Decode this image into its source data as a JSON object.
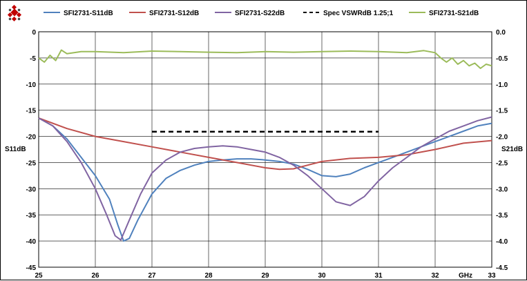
{
  "chart_data": {
    "type": "line",
    "title": "",
    "xlabel": "GHz",
    "ylabel_left": "S11dB",
    "ylabel_right": "S21dB",
    "xlim": [
      25,
      33
    ],
    "ylim_left": [
      -45,
      0
    ],
    "ylim_right": [
      -4.5,
      0.0
    ],
    "x_ticks": [
      "25",
      "26",
      "27",
      "28",
      "29",
      "30",
      "31",
      "32",
      "33"
    ],
    "y_ticks_left": [
      "0",
      "-5",
      "-10",
      "-15",
      "-20",
      "-25",
      "-30",
      "-35",
      "-40",
      "-45"
    ],
    "y_ticks_right": [
      "0.0",
      "-0.5",
      "-1.0",
      "-1.5",
      "-2.0",
      "-2.5",
      "-3.0",
      "-3.5",
      "-4.0",
      "-4.5"
    ],
    "grid": true,
    "legend_position": "top",
    "series": [
      {
        "name": "SFI2731-S11dB",
        "color": "#4f81bd",
        "axis": "left",
        "x": [
          25,
          25.25,
          25.5,
          25.75,
          26,
          26.25,
          26.4,
          26.5,
          26.6,
          26.75,
          27,
          27.25,
          27.5,
          27.75,
          28,
          28.25,
          28.5,
          28.75,
          29,
          29.25,
          29.5,
          29.75,
          30,
          30.25,
          30.5,
          30.75,
          31,
          31.25,
          31.5,
          31.75,
          32,
          32.25,
          32.5,
          32.75,
          33
        ],
        "values": [
          -16.5,
          -18,
          -20.5,
          -24,
          -27.5,
          -32,
          -37,
          -40,
          -39.5,
          -36,
          -31,
          -28,
          -26.5,
          -25.5,
          -24.8,
          -24.5,
          -24.3,
          -24.3,
          -24.5,
          -24.8,
          -25.3,
          -26.3,
          -27.5,
          -27.7,
          -27.2,
          -26,
          -25,
          -24,
          -23,
          -22,
          -21,
          -20,
          -19,
          -18,
          -17.5
        ]
      },
      {
        "name": "SFI2731-S12dB",
        "color": "#c0504d",
        "axis": "left",
        "x": [
          25,
          25.5,
          26,
          26.5,
          27,
          27.5,
          28,
          28.5,
          29,
          29.25,
          29.5,
          29.75,
          30,
          30.5,
          31,
          31.5,
          32,
          32.5,
          33
        ],
        "values": [
          -16.5,
          -18.5,
          -20,
          -21,
          -22,
          -23,
          -24,
          -25,
          -26,
          -26.3,
          -26.2,
          -25.5,
          -24.8,
          -24.2,
          -24,
          -23.5,
          -22.5,
          -21.3,
          -20.8
        ]
      },
      {
        "name": "SFI2731-S22dB",
        "color": "#8064a2",
        "axis": "left",
        "x": [
          25,
          25.25,
          25.5,
          25.75,
          26,
          26.2,
          26.35,
          26.45,
          26.6,
          26.8,
          27,
          27.25,
          27.5,
          27.75,
          28,
          28.25,
          28.5,
          28.75,
          29,
          29.25,
          29.5,
          29.75,
          30,
          30.25,
          30.5,
          30.75,
          31,
          31.25,
          31.5,
          31.75,
          32,
          32.25,
          32.5,
          32.75,
          33
        ],
        "values": [
          -16.5,
          -18,
          -21,
          -25,
          -30,
          -35,
          -39,
          -39.8,
          -36,
          -31,
          -27,
          -24.5,
          -23,
          -22.3,
          -22,
          -21.8,
          -22,
          -22.5,
          -23,
          -24,
          -25.5,
          -27.5,
          -30,
          -32.5,
          -33.2,
          -31.5,
          -28.5,
          -26,
          -24,
          -22,
          -20.5,
          -19,
          -18,
          -17,
          -16.3
        ]
      },
      {
        "name": "Spec VSWRdB 1.25;1",
        "color": "#000000",
        "axis": "left",
        "dashed": true,
        "x": [
          27,
          31
        ],
        "values": [
          -19.1,
          -19.1
        ]
      },
      {
        "name": "SFI2731-S21dB",
        "color": "#9bbb59",
        "axis": "right",
        "x": [
          25,
          25.1,
          25.2,
          25.3,
          25.4,
          25.5,
          25.75,
          26,
          26.5,
          27,
          27.5,
          28,
          28.5,
          29,
          29.5,
          30,
          30.5,
          31,
          31.5,
          31.8,
          32,
          32.1,
          32.2,
          32.3,
          32.4,
          32.5,
          32.6,
          32.7,
          32.8,
          32.9,
          33
        ],
        "values": [
          -0.5,
          -0.58,
          -0.45,
          -0.55,
          -0.35,
          -0.42,
          -0.38,
          -0.38,
          -0.4,
          -0.37,
          -0.38,
          -0.39,
          -0.4,
          -0.38,
          -0.39,
          -0.38,
          -0.37,
          -0.38,
          -0.4,
          -0.36,
          -0.4,
          -0.5,
          -0.58,
          -0.5,
          -0.62,
          -0.55,
          -0.65,
          -0.6,
          -0.7,
          -0.62,
          -0.65
        ]
      }
    ]
  }
}
